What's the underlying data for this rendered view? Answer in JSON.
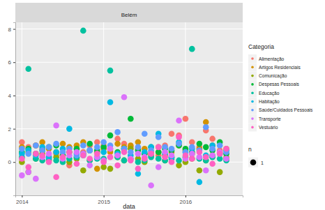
{
  "chart_data": {
    "type": "scatter",
    "facet": "Belém",
    "x_label": "data",
    "legend_title": "Categoria",
    "size_title": "n",
    "size_values": [
      1
    ],
    "x": [
      2014.0,
      2014.08,
      2014.17,
      2014.25,
      2014.33,
      2014.42,
      2014.5,
      2014.58,
      2014.67,
      2014.75,
      2014.83,
      2014.92,
      2015.0,
      2015.08,
      2015.17,
      2015.25,
      2015.33,
      2015.42,
      2015.5,
      2015.58,
      2015.67,
      2015.75,
      2015.83,
      2015.92,
      2016.0,
      2016.08,
      2016.17,
      2016.25,
      2016.33,
      2016.42,
      2016.5
    ],
    "xlim": [
      2013.92,
      2016.7
    ],
    "xticks": [
      2014,
      2015,
      2016
    ],
    "ylim": [
      -2,
      8.4
    ],
    "yticks": [
      0,
      2,
      4,
      6,
      8
    ],
    "grid": true,
    "marker": "circle",
    "series": [
      {
        "name": "Alimentação",
        "color": "#F8766D",
        "values": [
          1.2,
          0.9,
          1.0,
          0.8,
          0.3,
          0.5,
          0.2,
          -0.2,
          0.3,
          0.6,
          1.0,
          1.2,
          1.0,
          0.8,
          1.4,
          1.1,
          0.9,
          0.8,
          0.5,
          0.6,
          0.4,
          1.0,
          1.7,
          1.6,
          2.6,
          1.2,
          0.9,
          1.9,
          1.4,
          0.7,
          0.3
        ]
      },
      {
        "name": "Artigos Residenciais",
        "color": "#D39200",
        "values": [
          0.9,
          0.6,
          1.0,
          1.2,
          0.8,
          0.6,
          1.1,
          0.9,
          1.0,
          1.2,
          0.7,
          -0.4,
          0.8,
          0.6,
          1.1,
          0.9,
          1.0,
          1.2,
          0.8,
          0.5,
          0.9,
          0.4,
          0.6,
          1.0,
          0.7,
          0.5,
          0.8,
          2.4,
          1.0,
          0.6,
          0.8
        ]
      },
      {
        "name": "Comunicação",
        "color": "#93AA00",
        "values": [
          0.0,
          -0.6,
          0.2,
          0.5,
          0.1,
          0.3,
          0.4,
          0.0,
          0.2,
          -0.5,
          0.1,
          0.6,
          -0.3,
          -0.4,
          0.3,
          0.1,
          0.8,
          0.2,
          0.0,
          0.4,
          0.6,
          0.1,
          0.3,
          -0.2,
          0.0,
          0.2,
          -0.5,
          0.1,
          0.4,
          -0.6,
          0.2
        ]
      },
      {
        "name": "Despesas Pessoais",
        "color": "#00BA38",
        "values": [
          0.6,
          0.8,
          0.5,
          0.7,
          0.9,
          1.0,
          0.4,
          0.6,
          0.8,
          0.5,
          1.1,
          0.7,
          0.9,
          1.6,
          0.6,
          0.8,
          2.6,
          0.7,
          0.5,
          0.9,
          0.6,
          0.8,
          0.7,
          1.0,
          0.8,
          0.6,
          1.1,
          0.9,
          0.7,
          1.2,
          0.5
        ]
      },
      {
        "name": "Educação",
        "color": "#00C19F",
        "values": [
          0.3,
          5.6,
          0.2,
          0.1,
          0.2,
          0.1,
          0.0,
          0.2,
          0.3,
          7.9,
          0.1,
          0.2,
          0.2,
          5.5,
          0.3,
          0.1,
          0.2,
          0.0,
          0.1,
          0.3,
          0.2,
          0.1,
          0.2,
          0.1,
          0.3,
          6.8,
          0.2,
          0.1,
          0.3,
          0.2,
          0.1
        ]
      },
      {
        "name": "Habitação",
        "color": "#00B9E3",
        "values": [
          0.5,
          0.7,
          0.4,
          0.9,
          0.3,
          0.6,
          0.8,
          2.0,
          0.5,
          0.4,
          0.7,
          0.3,
          0.6,
          3.6,
          0.5,
          0.8,
          0.4,
          -0.7,
          0.6,
          0.9,
          1.7,
          0.5,
          0.3,
          1.2,
          0.6,
          0.8,
          -1.2,
          0.4,
          1.0,
          0.5,
          0.7
        ]
      },
      {
        "name": "Saúde/Cuidados Pessoais",
        "color": "#619CFF",
        "values": [
          0.8,
          0.5,
          1.0,
          0.7,
          0.9,
          1.1,
          0.6,
          0.8,
          0.4,
          1.0,
          0.7,
          0.9,
          1.2,
          1.0,
          1.8,
          0.8,
          0.6,
          0.9,
          1.7,
          0.7,
          1.5,
          0.9,
          0.8,
          1.1,
          0.6,
          0.9,
          0.7,
          2.1,
          0.8,
          1.0,
          0.6
        ]
      },
      {
        "name": "Transporte",
        "color": "#DB72FB",
        "values": [
          -0.8,
          -0.6,
          -1.0,
          0.3,
          0.5,
          2.2,
          0.2,
          0.4,
          0.6,
          0.5,
          -0.2,
          0.3,
          0.1,
          0.8,
          0.4,
          3.9,
          0.2,
          0.5,
          0.3,
          -1.4,
          -0.3,
          0.6,
          0.4,
          2.5,
          0.2,
          0.5,
          0.3,
          -0.5,
          0.4,
          0.6,
          0.2
        ]
      },
      {
        "name": "Vestuário",
        "color": "#FF61C3",
        "values": [
          0.2,
          -0.3,
          0.5,
          0.4,
          0.0,
          -0.9,
          0.3,
          0.6,
          -0.1,
          0.4,
          0.2,
          0.5,
          0.0,
          0.3,
          -0.2,
          0.6,
          0.1,
          -0.4,
          0.2,
          0.5,
          0.9,
          0.3,
          0.0,
          1.5,
          0.4,
          0.2,
          0.6,
          0.3,
          -0.1,
          0.5,
          0.8
        ]
      }
    ]
  }
}
